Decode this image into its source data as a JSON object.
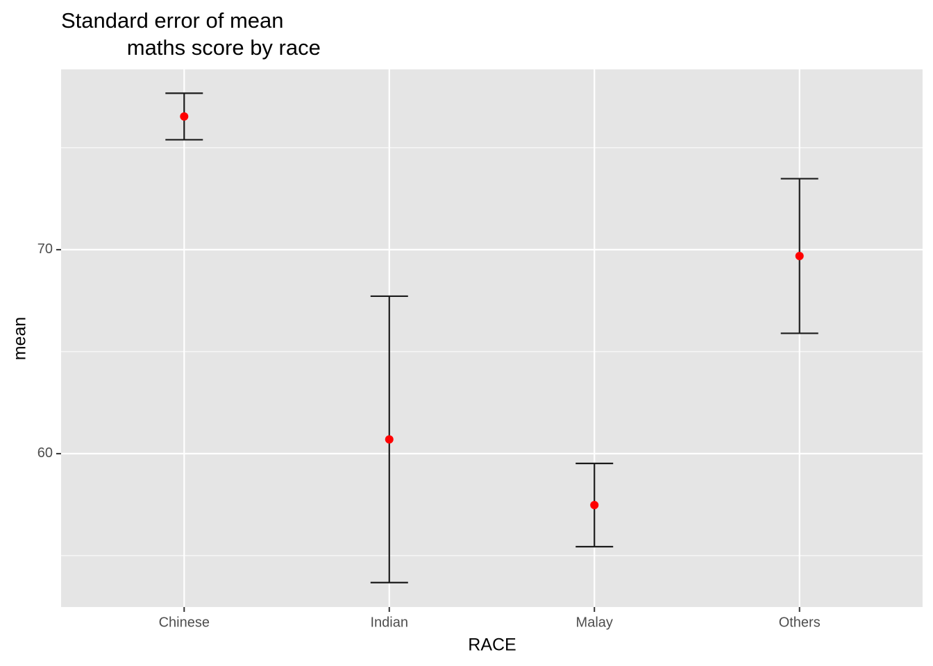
{
  "chart_data": {
    "type": "errorbar",
    "title": "Standard error of mean\n           maths score by race",
    "x_label": "RACE",
    "y_label": "mean",
    "categories": [
      "Chinese",
      "Indian",
      "Malay",
      "Others"
    ],
    "values": [
      76.53,
      60.7,
      57.48,
      69.69
    ],
    "errors": [
      1.14,
      7.02,
      2.04,
      3.79
    ],
    "point_color": "#ff0000",
    "bar_color": "#1a1a1a",
    "ylim": [
      52.48,
      78.84
    ],
    "yticks": [
      60,
      70
    ],
    "grid": true,
    "minor_grid": true
  }
}
